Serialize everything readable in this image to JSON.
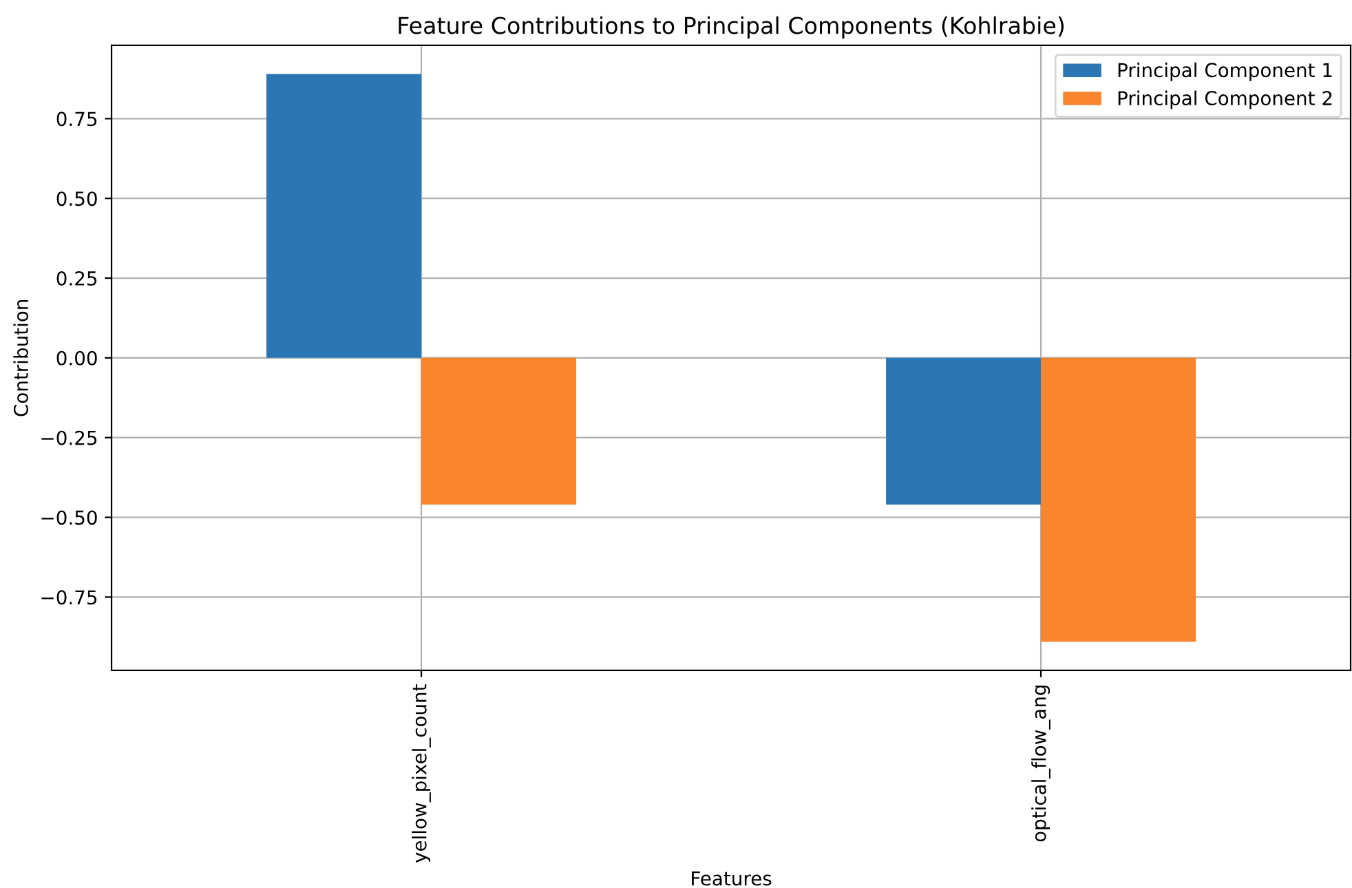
{
  "chart_data": {
    "type": "bar",
    "title": "Feature Contributions to Principal Components (Kohlrabie)",
    "xlabel": "Features",
    "ylabel": "Contribution",
    "categories": [
      "yellow_pixel_count",
      "optical_flow_ang"
    ],
    "series": [
      {
        "name": "Principal Component 1",
        "color": "#2a77b4",
        "values": [
          0.89,
          -0.46
        ]
      },
      {
        "name": "Principal Component 2",
        "color": "#f9852e",
        "values": [
          -0.46,
          -0.89
        ]
      }
    ],
    "ylim": [
      -0.98,
      0.98
    ],
    "yticks": [
      {
        "value": -0.75,
        "label": "−0.75"
      },
      {
        "value": -0.5,
        "label": "−0.50"
      },
      {
        "value": -0.25,
        "label": "−0.25"
      },
      {
        "value": 0,
        "label": "0.00"
      },
      {
        "value": 0.25,
        "label": "0.25"
      },
      {
        "value": 0.5,
        "label": "0.50"
      },
      {
        "value": 0.75,
        "label": "0.75"
      }
    ],
    "grid": true,
    "legend": "top right"
  }
}
